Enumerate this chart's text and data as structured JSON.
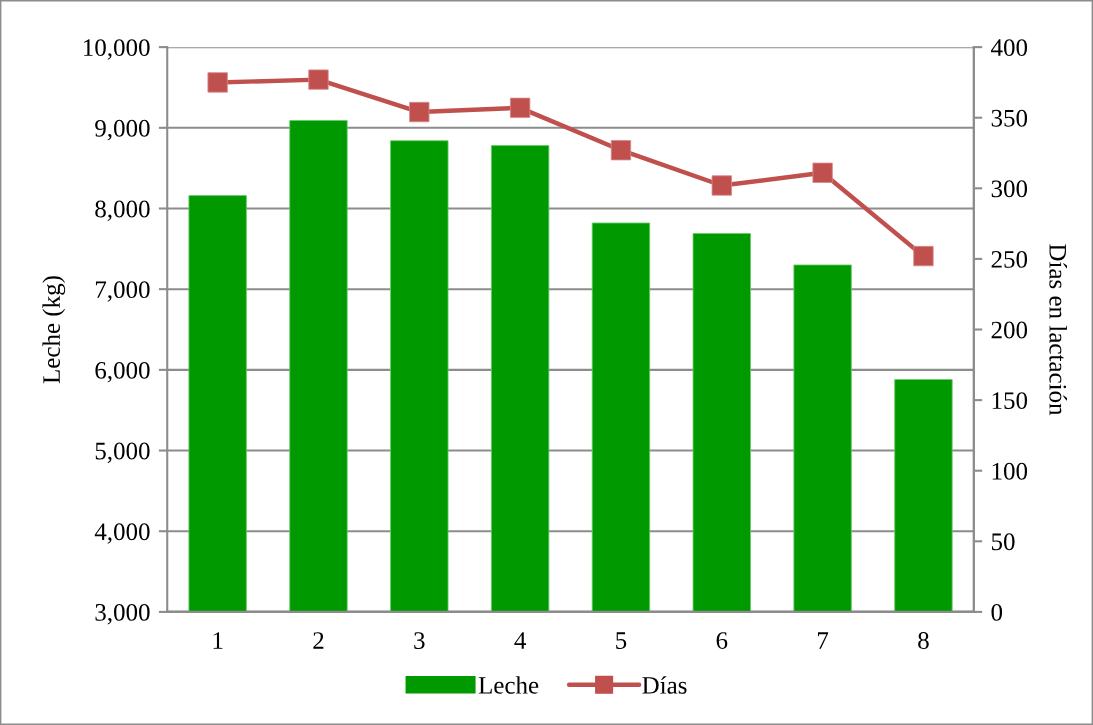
{
  "chart_data": {
    "type": "bar",
    "categories": [
      "1",
      "2",
      "3",
      "4",
      "5",
      "6",
      "7",
      "8"
    ],
    "ylabel": "Leche (kg)",
    "y2label": "Días en lactación",
    "ylim": [
      3000,
      10000
    ],
    "yticks": [
      {
        "value": 3000,
        "label": "3,000"
      },
      {
        "value": 4000,
        "label": "4,000"
      },
      {
        "value": 5000,
        "label": "5,000"
      },
      {
        "value": 6000,
        "label": "6,000"
      },
      {
        "value": 7000,
        "label": "7,000"
      },
      {
        "value": 8000,
        "label": "8,000"
      },
      {
        "value": 9000,
        "label": "9,000"
      },
      {
        "value": 10000,
        "label": "10,000"
      }
    ],
    "y2lim": [
      0,
      400
    ],
    "y2ticks": [
      0,
      50,
      100,
      150,
      200,
      250,
      300,
      350,
      400
    ],
    "series": [
      {
        "name": "Leche",
        "color": "#009900",
        "values": [
          8160,
          9090,
          8840,
          8780,
          7820,
          7690,
          7300,
          5880
        ]
      },
      {
        "name": "Días",
        "type": "line",
        "axis": "y2",
        "color": "#c0504d",
        "marker": "square",
        "values": [
          375,
          377,
          354,
          357,
          327,
          302,
          311,
          252
        ]
      }
    ],
    "grid": "y",
    "legend": "bottom"
  }
}
